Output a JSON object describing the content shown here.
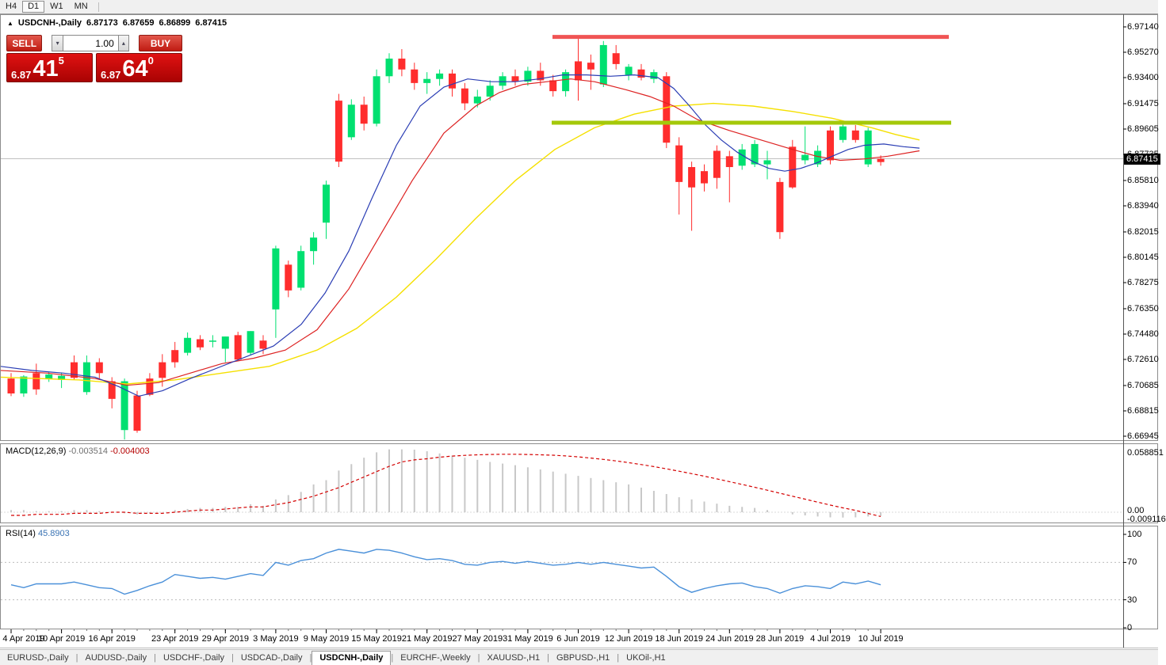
{
  "window": {
    "timeframes": [
      "H4",
      "D1",
      "W1",
      "MN"
    ],
    "active_timeframe": "D1"
  },
  "title": {
    "collapse_arrow": "▲",
    "symbol": "USDCNH-,Daily",
    "open": "6.87173",
    "high": "6.87659",
    "low": "6.86899",
    "close": "6.87415"
  },
  "one_click": {
    "sell_label": "SELL",
    "buy_label": "BUY",
    "volume": "1.00",
    "spin_down": "▾",
    "spin_up": "▴",
    "sell_price": {
      "prefix": "6.87",
      "big": "41",
      "sup": "5"
    },
    "buy_price": {
      "prefix": "6.87",
      "big": "64",
      "sup": "0"
    }
  },
  "indicators": {
    "macd": {
      "label": "MACD(12,26,9)",
      "value_main": "-0.003514",
      "value_signal": "-0.004003",
      "axis_labels": [
        "0.058851",
        "0.00",
        "-0.009116"
      ]
    },
    "rsi": {
      "label": "RSI(14)",
      "value": "45.8903",
      "axis_labels": [
        "100",
        "70",
        "30",
        "0"
      ],
      "levels": [
        70,
        30
      ]
    }
  },
  "price_axis": {
    "labels": [
      "6.97140",
      "6.95270",
      "6.93400",
      "6.91475",
      "6.89605",
      "6.87735",
      "6.85810",
      "6.83940",
      "6.82015",
      "6.80145",
      "6.78275",
      "6.76350",
      "6.74480",
      "6.72610",
      "6.70685",
      "6.68815",
      "6.66945"
    ],
    "current_price": "6.87415"
  },
  "date_axis": [
    {
      "label": "4 Apr 2019",
      "i": 0
    },
    {
      "label": "10 Apr 2019",
      "i": 4
    },
    {
      "label": "16 Apr 2019",
      "i": 8
    },
    {
      "label": "23 Apr 2019",
      "i": 13
    },
    {
      "label": "29 Apr 2019",
      "i": 17
    },
    {
      "label": "3 May 2019",
      "i": 21
    },
    {
      "label": "9 May 2019",
      "i": 25
    },
    {
      "label": "15 May 2019",
      "i": 29
    },
    {
      "label": "21 May 2019",
      "i": 33
    },
    {
      "label": "27 May 2019",
      "i": 37
    },
    {
      "label": "31 May 2019",
      "i": 41
    },
    {
      "label": "6 Jun 2019",
      "i": 45
    },
    {
      "label": "12 Jun 2019",
      "i": 49
    },
    {
      "label": "18 Jun 2019",
      "i": 53
    },
    {
      "label": "24 Jun 2019",
      "i": 57
    },
    {
      "label": "28 Jun 2019",
      "i": 61
    },
    {
      "label": "4 Jul 2019",
      "i": 65
    },
    {
      "label": "10 Jul 2019",
      "i": 69
    }
  ],
  "tabs": {
    "items": [
      "EURUSD-,Daily",
      "AUDUSD-,Daily",
      "USDCHF-,Daily",
      "USDCAD-,Daily",
      "USDCNH-,Daily",
      "EURCHF-,Weekly",
      "XAUUSD-,H1",
      "GBPUSD-,H1",
      "UKOil-,H1"
    ],
    "active": "USDCNH-,Daily"
  },
  "colors": {
    "bull": "#00e070",
    "bear": "#ff2d2d",
    "ma_fast": "#2a3db4",
    "ma_mid": "#dd2222",
    "ma_slow": "#f5e000",
    "resistance_line": "#f05454",
    "support_line": "#a4c80a",
    "current_price_line": "#c0c0c0",
    "macd_hist": "#c8c8c8",
    "macd_signal": "#d40000",
    "rsi_line": "#4a90d9",
    "buy_sell_red": "#c01b12",
    "price_tag_bg": "#000000"
  },
  "chart_data": {
    "type": "candlestick",
    "symbol": "USDCNH",
    "timeframe": "Daily",
    "ylim": [
      6.66945,
      6.9714
    ],
    "grid": false,
    "columns": [
      "date",
      "open",
      "high",
      "low",
      "close"
    ],
    "candles": [
      [
        "4 Apr",
        6.712,
        6.716,
        6.699,
        6.701
      ],
      [
        "5 Apr",
        6.701,
        6.7145,
        6.6985,
        6.7135
      ],
      [
        "8 Apr",
        6.716,
        6.723,
        6.7,
        6.704
      ],
      [
        "9 Apr",
        6.7115,
        6.717,
        6.7095,
        6.715
      ],
      [
        "10 Apr",
        6.711,
        6.7165,
        6.705,
        6.714
      ],
      [
        "11 Apr",
        6.724,
        6.729,
        6.711,
        6.7125
      ],
      [
        "12 Apr",
        6.702,
        6.729,
        6.7,
        6.724
      ],
      [
        "15 Apr",
        6.724,
        6.727,
        6.712,
        6.716
      ],
      [
        "16 Apr",
        6.71,
        6.713,
        6.69,
        6.697
      ],
      [
        "17 Apr",
        6.674,
        6.712,
        6.667,
        6.71
      ],
      [
        "18 Apr",
        6.6995,
        6.703,
        6.672,
        6.6735
      ],
      [
        "19 Apr",
        6.712,
        6.716,
        6.699,
        6.7
      ],
      [
        "22 Apr",
        6.724,
        6.73,
        6.706,
        6.7125
      ],
      [
        "23 Apr",
        6.733,
        6.739,
        6.72,
        6.724
      ],
      [
        "24 Apr",
        6.731,
        6.746,
        6.729,
        6.742
      ],
      [
        "25 Apr",
        6.741,
        6.744,
        6.733,
        6.735
      ],
      [
        "26 Apr",
        6.74,
        6.744,
        6.735,
        6.74
      ],
      [
        "29 Apr",
        6.734,
        6.743,
        6.724,
        6.743
      ],
      [
        "30 Apr",
        6.744,
        6.7465,
        6.725,
        6.726
      ],
      [
        "1 May",
        6.731,
        6.747,
        6.729,
        6.747
      ],
      [
        "2 May",
        6.74,
        6.744,
        6.73,
        6.734
      ],
      [
        "3 May",
        6.763,
        6.81,
        6.742,
        6.808
      ],
      [
        "6 May",
        6.796,
        6.799,
        6.772,
        6.777
      ],
      [
        "7 May",
        6.779,
        6.81,
        6.777,
        6.806
      ],
      [
        "8 May",
        6.806,
        6.82,
        6.796,
        6.816
      ],
      [
        "9 May",
        6.827,
        6.858,
        6.815,
        6.855
      ],
      [
        "10 May",
        6.917,
        6.922,
        6.868,
        6.872
      ],
      [
        "13 May",
        6.89,
        6.918,
        6.888,
        6.914
      ],
      [
        "14 May",
        6.914,
        6.92,
        6.895,
        6.9
      ],
      [
        "15 May",
        6.9,
        6.94,
        6.898,
        6.935
      ],
      [
        "16 May",
        6.935,
        6.952,
        6.93,
        6.948
      ],
      [
        "17 May",
        6.948,
        6.955,
        6.935,
        6.94
      ],
      [
        "20 May",
        6.94,
        6.945,
        6.925,
        6.93
      ],
      [
        "21 May",
        6.93,
        6.938,
        6.922,
        6.933
      ],
      [
        "22 May",
        6.933,
        6.94,
        6.928,
        6.937
      ],
      [
        "23 May",
        6.937,
        6.94,
        6.92,
        6.926
      ],
      [
        "24 May",
        6.926,
        6.93,
        6.91,
        6.915
      ],
      [
        "27 May",
        6.915,
        6.925,
        6.912,
        6.92
      ],
      [
        "28 May",
        6.92,
        6.932,
        6.917,
        6.928
      ],
      [
        "29 May",
        6.928,
        6.938,
        6.925,
        6.935
      ],
      [
        "30 May",
        6.935,
        6.94,
        6.928,
        6.931
      ],
      [
        "31 May",
        6.931,
        6.942,
        6.928,
        6.939
      ],
      [
        "3 Jun",
        6.939,
        6.945,
        6.928,
        6.932
      ],
      [
        "4 Jun",
        6.932,
        6.936,
        6.92,
        6.924
      ],
      [
        "5 Jun",
        6.924,
        6.94,
        6.92,
        6.938
      ],
      [
        "6 Jun",
        6.946,
        6.9635,
        6.917,
        6.932
      ],
      [
        "7 Jun",
        6.945,
        6.951,
        6.925,
        6.94
      ],
      [
        "10 Jun",
        6.929,
        6.961,
        6.927,
        6.958
      ],
      [
        "11 Jun",
        6.952,
        6.958,
        6.94,
        6.944
      ],
      [
        "12 Jun",
        6.936,
        6.944,
        6.932,
        6.942
      ],
      [
        "13 Jun",
        6.94,
        6.944,
        6.932,
        6.934
      ],
      [
        "14 Jun",
        6.933,
        6.94,
        6.93,
        6.938
      ],
      [
        "17 Jun",
        6.935,
        6.938,
        6.882,
        6.886
      ],
      [
        "18 Jun",
        6.884,
        6.89,
        6.833,
        6.857
      ],
      [
        "19 Jun",
        6.868,
        6.872,
        6.821,
        6.853
      ],
      [
        "20 Jun",
        6.865,
        6.87,
        6.85,
        6.856
      ],
      [
        "21 Jun",
        6.88,
        6.884,
        6.852,
        6.86
      ],
      [
        "24 Jun",
        6.876,
        6.88,
        6.842,
        6.868
      ],
      [
        "25 Jun",
        6.869,
        6.885,
        6.866,
        6.881
      ],
      [
        "26 Jun",
        6.87,
        6.888,
        6.868,
        6.885
      ],
      [
        "27 Jun",
        6.87,
        6.88,
        6.859,
        6.873
      ],
      [
        "28 Jun",
        6.857,
        6.86,
        6.815,
        6.82
      ],
      [
        "1 Jul",
        6.883,
        6.888,
        6.852,
        6.853
      ],
      [
        "2 Jul",
        6.873,
        6.898,
        6.87,
        6.877
      ],
      [
        "3 Jul",
        6.87,
        6.884,
        6.868,
        6.88
      ],
      [
        "4 Jul",
        6.895,
        6.898,
        6.87,
        6.873
      ],
      [
        "5 Jul",
        6.888,
        6.9,
        6.886,
        6.898
      ],
      [
        "8 Jul",
        6.895,
        6.899,
        6.886,
        6.888
      ],
      [
        "9 Jul",
        6.87,
        6.897,
        6.868,
        6.895
      ],
      [
        "10 Jul",
        6.8717,
        6.8766,
        6.869,
        6.8741
      ]
    ],
    "last_candle_bear_colored": true,
    "levels": {
      "resistance": 6.964,
      "support": 6.9007,
      "resistance_x": [
        697,
        1197
      ],
      "support_x": [
        696,
        1200
      ]
    },
    "current_price": 6.87415,
    "ma_blue": [
      [
        0,
        6.721
      ],
      [
        40,
        6.718
      ],
      [
        80,
        6.716
      ],
      [
        120,
        6.713
      ],
      [
        150,
        6.706
      ],
      [
        175,
        6.699
      ],
      [
        205,
        6.703
      ],
      [
        240,
        6.712
      ],
      [
        275,
        6.72
      ],
      [
        310,
        6.728
      ],
      [
        345,
        6.736
      ],
      [
        380,
        6.752
      ],
      [
        410,
        6.775
      ],
      [
        440,
        6.806
      ],
      [
        470,
        6.846
      ],
      [
        500,
        6.884
      ],
      [
        530,
        6.913
      ],
      [
        560,
        6.927
      ],
      [
        590,
        6.933
      ],
      [
        620,
        6.931
      ],
      [
        650,
        6.931
      ],
      [
        680,
        6.933
      ],
      [
        710,
        6.936
      ],
      [
        740,
        6.936
      ],
      [
        770,
        6.935
      ],
      [
        800,
        6.936
      ],
      [
        830,
        6.934
      ],
      [
        850,
        6.926
      ],
      [
        870,
        6.913
      ],
      [
        890,
        6.899
      ],
      [
        910,
        6.888
      ],
      [
        930,
        6.879
      ],
      [
        950,
        6.872
      ],
      [
        970,
        6.867
      ],
      [
        990,
        6.865
      ],
      [
        1010,
        6.867
      ],
      [
        1030,
        6.871
      ],
      [
        1050,
        6.876
      ],
      [
        1070,
        6.881
      ],
      [
        1090,
        6.884
      ],
      [
        1115,
        6.885
      ],
      [
        1140,
        6.883
      ],
      [
        1160,
        6.882
      ]
    ],
    "ma_red": [
      [
        0,
        6.718
      ],
      [
        60,
        6.716
      ],
      [
        120,
        6.712
      ],
      [
        160,
        6.707
      ],
      [
        200,
        6.709
      ],
      [
        240,
        6.716
      ],
      [
        280,
        6.723
      ],
      [
        320,
        6.727
      ],
      [
        360,
        6.733
      ],
      [
        400,
        6.748
      ],
      [
        440,
        6.778
      ],
      [
        480,
        6.818
      ],
      [
        520,
        6.858
      ],
      [
        560,
        6.893
      ],
      [
        600,
        6.913
      ],
      [
        630,
        6.923
      ],
      [
        660,
        6.929
      ],
      [
        690,
        6.931
      ],
      [
        720,
        6.933
      ],
      [
        750,
        6.931
      ],
      [
        790,
        6.925
      ],
      [
        820,
        6.92
      ],
      [
        850,
        6.913
      ],
      [
        880,
        6.903
      ],
      [
        920,
        6.895
      ],
      [
        960,
        6.888
      ],
      [
        1000,
        6.881
      ],
      [
        1030,
        6.876
      ],
      [
        1060,
        6.873
      ],
      [
        1090,
        6.874
      ],
      [
        1120,
        6.876
      ],
      [
        1160,
        6.88
      ]
    ],
    "ma_yellow": [
      [
        0,
        6.713
      ],
      [
        100,
        6.711
      ],
      [
        160,
        6.708
      ],
      [
        220,
        6.711
      ],
      [
        280,
        6.716
      ],
      [
        340,
        6.721
      ],
      [
        400,
        6.733
      ],
      [
        450,
        6.749
      ],
      [
        500,
        6.772
      ],
      [
        550,
        6.8
      ],
      [
        600,
        6.83
      ],
      [
        650,
        6.858
      ],
      [
        700,
        6.881
      ],
      [
        750,
        6.897
      ],
      [
        800,
        6.907
      ],
      [
        850,
        6.913
      ],
      [
        900,
        6.915
      ],
      [
        950,
        6.913
      ],
      [
        1000,
        6.909
      ],
      [
        1050,
        6.904
      ],
      [
        1100,
        6.897
      ],
      [
        1130,
        6.892
      ],
      [
        1160,
        6.888
      ]
    ],
    "macd_hist": [
      0.002,
      0.002,
      0.001,
      0.001,
      0.001,
      0.002,
      0.002,
      0.001,
      0.0,
      -0.001,
      -0.002,
      -0.001,
      0.0,
      0.002,
      0.003,
      0.004,
      0.004,
      0.005,
      0.005,
      0.0075,
      0.006,
      0.012,
      0.016,
      0.019,
      0.026,
      0.03,
      0.039,
      0.045,
      0.051,
      0.056,
      0.0588,
      0.0588,
      0.0585,
      0.057,
      0.055,
      0.053,
      0.051,
      0.049,
      0.047,
      0.0455,
      0.044,
      0.042,
      0.04,
      0.038,
      0.036,
      0.034,
      0.032,
      0.03,
      0.028,
      0.026,
      0.023,
      0.02,
      0.017,
      0.014,
      0.012,
      0.01,
      0.008,
      0.006,
      0.005,
      0.004,
      0.002,
      0.0,
      -0.002,
      -0.003,
      -0.004,
      -0.0048,
      -0.005,
      -0.0048,
      -0.004,
      -0.0035
    ],
    "macd_signal": [
      -0.003,
      -0.003,
      -0.002,
      -0.002,
      -0.002,
      -0.001,
      -0.001,
      -0.001,
      0.0,
      0.0,
      -0.001,
      -0.001,
      -0.001,
      0.0,
      0.001,
      0.002,
      0.002,
      0.003,
      0.004,
      0.005,
      0.005,
      0.007,
      0.009,
      0.012,
      0.015,
      0.019,
      0.023,
      0.028,
      0.033,
      0.038,
      0.043,
      0.047,
      0.049,
      0.05,
      0.0515,
      0.0525,
      0.0532,
      0.0537,
      0.054,
      0.0542,
      0.0542,
      0.054,
      0.0537,
      0.0533,
      0.0527,
      0.0518,
      0.0507,
      0.0494,
      0.048,
      0.0464,
      0.0446,
      0.0427,
      0.0406,
      0.0384,
      0.0361,
      0.0337,
      0.0312,
      0.0286,
      0.026,
      0.0233,
      0.0206,
      0.0178,
      0.015,
      0.0122,
      0.0094,
      0.0067,
      0.0041,
      0.0017,
      -0.0012,
      -0.004
    ],
    "rsi": [
      46,
      43,
      47,
      47,
      47,
      49,
      46,
      43,
      42,
      36,
      40,
      45,
      49,
      57,
      55,
      53,
      54,
      52,
      55,
      58,
      56,
      70,
      67,
      72,
      74,
      80,
      84,
      82,
      80,
      84,
      83,
      80,
      76,
      73,
      74,
      72,
      68,
      67,
      70,
      71,
      69,
      71,
      69,
      67,
      68,
      70,
      68,
      70,
      68,
      66,
      64,
      65,
      55,
      44,
      38,
      42,
      45,
      47,
      48,
      44,
      42,
      37,
      42,
      45,
      44,
      42,
      49,
      47,
      50,
      46
    ]
  }
}
